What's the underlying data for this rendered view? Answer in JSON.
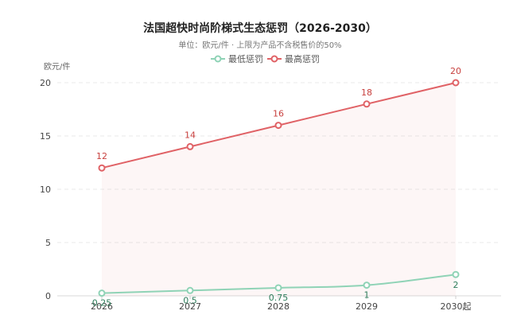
{
  "chart_data": {
    "type": "line",
    "title": "法国超快时尚阶梯式生态惩罚（2026-2030）",
    "subtitle": "单位：欧元/件 · 上限为产品不含税售价的50%",
    "ylabel": "欧元/件",
    "categories": [
      "2026",
      "2027",
      "2028",
      "2029",
      "2030起"
    ],
    "ylim": [
      0,
      20
    ],
    "yticks": [
      0,
      5,
      10,
      15,
      20
    ],
    "grid": true,
    "legend_position": "top-center",
    "series": [
      {
        "name": "最低惩罚",
        "values": [
          0.25,
          0.5,
          0.75,
          1,
          2
        ],
        "labels": [
          "0.25",
          "0.5",
          "0.75",
          "1",
          "2"
        ],
        "color": "#8fd3b6",
        "label_color": "#2e7d5b"
      },
      {
        "name": "最高惩罚",
        "values": [
          12,
          14,
          16,
          18,
          20
        ],
        "labels": [
          "12",
          "14",
          "16",
          "18",
          "20"
        ],
        "color": "#e06266",
        "label_color": "#c8413f"
      }
    ]
  }
}
